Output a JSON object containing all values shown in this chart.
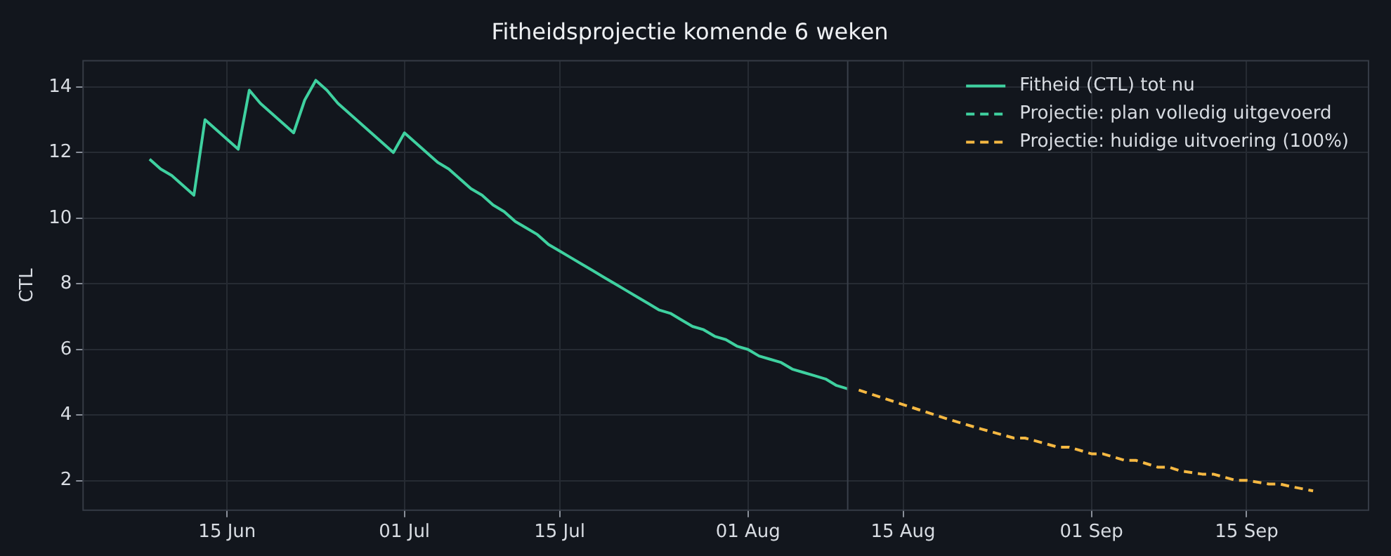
{
  "chart_data": {
    "type": "line",
    "title": "Fitheidsprojectie komende 6 weken",
    "ylabel": "CTL",
    "xlim": [
      "--06-02",
      "--09-26"
    ],
    "xticks": [
      {
        "value": "--06-15",
        "label": "15 Jun"
      },
      {
        "value": "--07-01",
        "label": "01 Jul"
      },
      {
        "value": "--07-15",
        "label": "15 Jul"
      },
      {
        "value": "--08-01",
        "label": "01 Aug"
      },
      {
        "value": "--08-15",
        "label": "15 Aug"
      },
      {
        "value": "--09-01",
        "label": "01 Sep"
      },
      {
        "value": "--09-15",
        "label": "15 Sep"
      }
    ],
    "ylim": [
      1.1,
      14.8
    ],
    "yticks": [
      2,
      4,
      6,
      8,
      10,
      12,
      14
    ],
    "grid": true,
    "legend": "top right",
    "ref_lines": [
      {
        "axis": "x",
        "value": "--08-10",
        "color": "#3a404a"
      }
    ],
    "series": [
      {
        "name": "Fitheid (CTL) tot nu",
        "color": "#3fd1a0",
        "line_style": "solid",
        "x": [
          "--06-08",
          "--06-09",
          "--06-10",
          "--06-11",
          "--06-12",
          "--06-13",
          "--06-14",
          "--06-15",
          "--06-16",
          "--06-17",
          "--06-18",
          "--06-19",
          "--06-20",
          "--06-21",
          "--06-22",
          "--06-23",
          "--06-24",
          "--06-25",
          "--06-26",
          "--06-27",
          "--06-28",
          "--06-29",
          "--06-30",
          "--07-01",
          "--07-02",
          "--07-03",
          "--07-04",
          "--07-05",
          "--07-06",
          "--07-07",
          "--07-08",
          "--07-09",
          "--07-10",
          "--07-11",
          "--07-12",
          "--07-13",
          "--07-14",
          "--07-15",
          "--07-16",
          "--07-17",
          "--07-18",
          "--07-19",
          "--07-20",
          "--07-21",
          "--07-22",
          "--07-23",
          "--07-24",
          "--07-25",
          "--07-26",
          "--07-27",
          "--07-28",
          "--07-29",
          "--07-30",
          "--07-31",
          "--08-01",
          "--08-02",
          "--08-03",
          "--08-04",
          "--08-05",
          "--08-06",
          "--08-07",
          "--08-08",
          "--08-09",
          "--08-10"
        ],
        "values": [
          11.8,
          11.5,
          11.3,
          11.0,
          10.7,
          13.0,
          12.7,
          12.4,
          12.1,
          13.9,
          13.5,
          13.2,
          12.9,
          12.6,
          13.6,
          14.2,
          13.9,
          13.5,
          13.2,
          12.9,
          12.6,
          12.3,
          12.0,
          12.6,
          12.3,
          12.0,
          11.7,
          11.5,
          11.2,
          10.9,
          10.7,
          10.4,
          10.2,
          9.9,
          9.7,
          9.5,
          9.2,
          9.0,
          8.8,
          8.6,
          8.4,
          8.2,
          8.0,
          7.8,
          7.6,
          7.4,
          7.2,
          7.1,
          6.9,
          6.7,
          6.6,
          6.4,
          6.3,
          6.1,
          6.0,
          5.8,
          5.7,
          5.6,
          5.4,
          5.3,
          5.2,
          5.1,
          4.9,
          4.8
        ]
      },
      {
        "name": "Projectie: plan volledig uitgevoerd",
        "color": "#3fd1a0",
        "line_style": "dashed"
      },
      {
        "name": "Projectie: huidige uitvoering (100%)",
        "color": "#f5b842",
        "line_style": "dashed",
        "x": [
          "--08-11",
          "--08-15",
          "--08-19",
          "--08-22",
          "--08-25",
          "--08-26",
          "--08-29",
          "--08-30",
          "--09-01",
          "--09-02",
          "--09-04",
          "--09-05",
          "--09-07",
          "--09-08",
          "--09-09",
          "--09-11",
          "--09-12",
          "--09-14",
          "--09-15",
          "--09-17",
          "--09-18",
          "--09-19",
          "--09-21"
        ],
        "values": [
          4.76,
          4.32,
          3.88,
          3.58,
          3.3,
          3.3,
          3.02,
          3.02,
          2.82,
          2.82,
          2.62,
          2.62,
          2.41,
          2.41,
          2.3,
          2.2,
          2.2,
          2.01,
          2.01,
          1.9,
          1.9,
          1.82,
          1.69
        ]
      }
    ]
  }
}
